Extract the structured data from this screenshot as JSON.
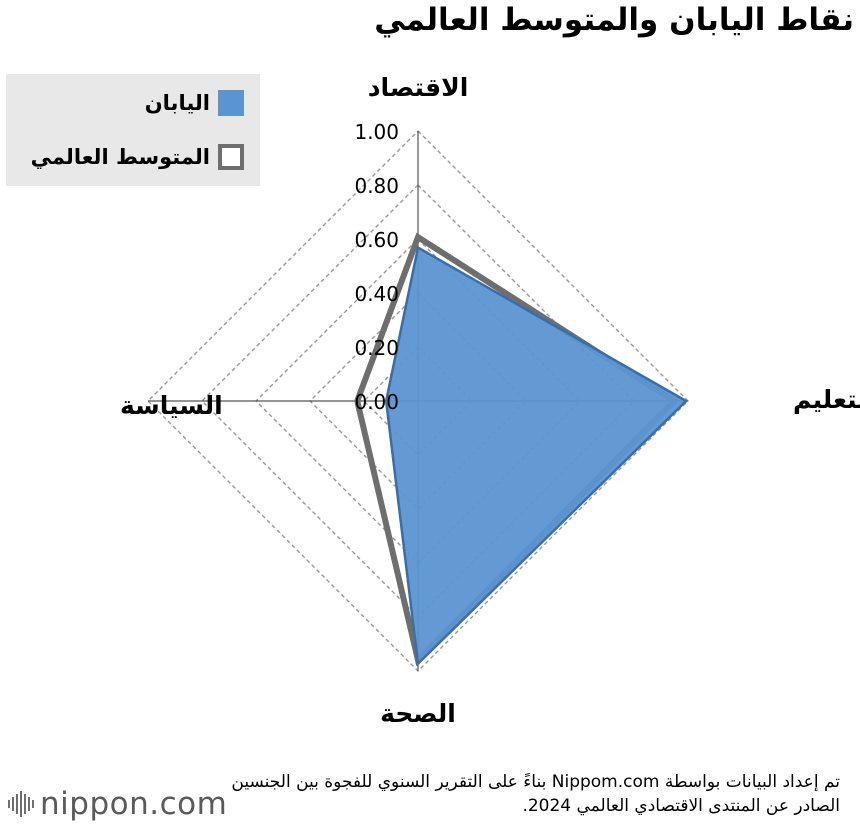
{
  "chart_data": {
    "type": "radar",
    "title": "نقاط اليابان والمتوسط العالمي",
    "axes": [
      "الاقتصاد",
      "التعليم",
      "الصحة",
      "السياسة"
    ],
    "rlim": [
      0,
      1
    ],
    "ticks": [
      "0.00",
      "0.20",
      "0.40",
      "0.60",
      "0.80",
      "1.00"
    ],
    "tick_values": [
      0,
      0.2,
      0.4,
      0.6,
      0.8,
      1.0
    ],
    "grid": true,
    "legend_position": "top-left",
    "series": [
      {
        "name": "اليابان",
        "values": [
          0.568,
          0.993,
          0.973,
          0.118
        ],
        "color": "#5b95d1",
        "edge": "#3a6ea8"
      },
      {
        "name": "المتوسط العالمي",
        "values": [
          0.607,
          0.949,
          0.96,
          0.225
        ],
        "color": "#6e6e6e"
      }
    ]
  },
  "legend": {
    "items": [
      {
        "label": "اليابان",
        "color": "#5b95d1"
      },
      {
        "label": "المتوسط العالمي",
        "color": "#6e6e6e"
      }
    ]
  },
  "note": "تم إعداد البيانات بواسطة Nippom.com بناءً على التقرير السنوي للفجوة بين الجنسين الصادر عن المنتدى الاقتصادي العالمي 2024.",
  "logo": {
    "text": "nippon.com"
  }
}
